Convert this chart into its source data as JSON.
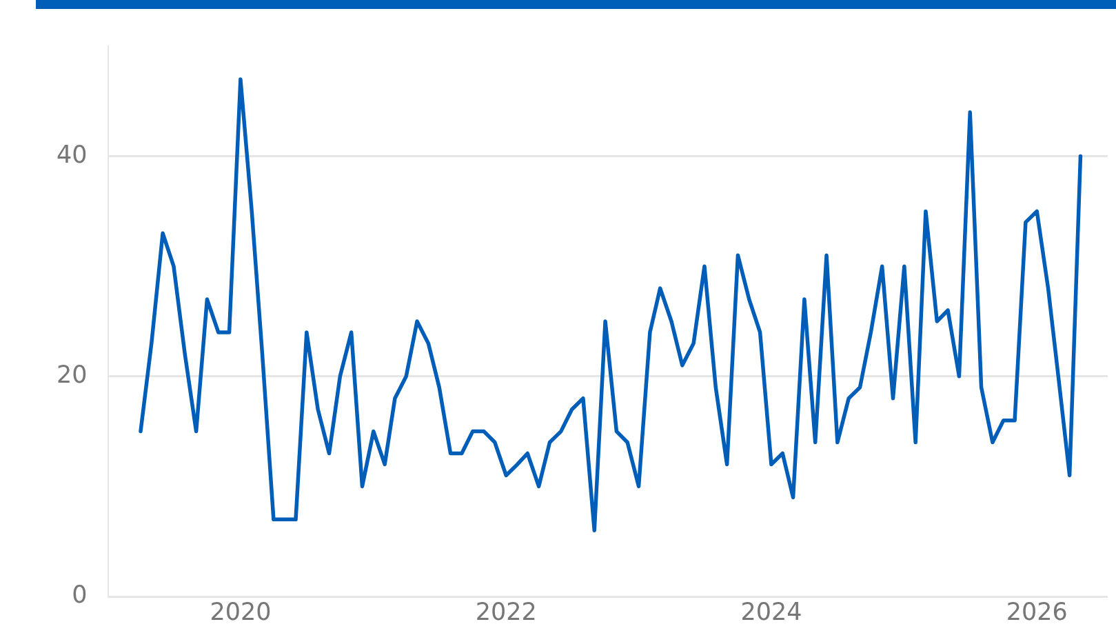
{
  "chart_data": {
    "type": "line",
    "x": [
      "2019-04",
      "2019-05",
      "2019-06",
      "2019-07",
      "2019-08",
      "2019-09",
      "2019-10",
      "2019-11",
      "2019-12",
      "2020-01",
      "2020-02",
      "2020-03",
      "2020-04",
      "2020-05",
      "2020-06",
      "2020-07",
      "2020-08",
      "2020-09",
      "2020-10",
      "2020-11",
      "2020-12",
      "2021-01",
      "2021-02",
      "2021-03",
      "2021-04",
      "2021-05",
      "2021-06",
      "2021-07",
      "2021-08",
      "2021-09",
      "2021-10",
      "2021-11",
      "2021-12",
      "2022-01",
      "2022-02",
      "2022-03",
      "2022-04",
      "2022-05",
      "2022-06",
      "2022-07",
      "2022-08",
      "2022-09",
      "2022-10",
      "2022-11",
      "2022-12",
      "2023-01",
      "2023-02",
      "2023-03",
      "2023-04",
      "2023-05",
      "2023-06",
      "2023-07",
      "2023-08",
      "2023-09",
      "2023-10",
      "2023-11",
      "2023-12",
      "2024-01",
      "2024-02",
      "2024-03",
      "2024-04",
      "2024-05",
      "2024-06",
      "2024-07",
      "2024-08",
      "2024-09",
      "2024-10",
      "2024-11",
      "2024-12",
      "2025-01",
      "2025-02",
      "2025-03",
      "2025-04",
      "2025-05",
      "2025-06",
      "2025-07",
      "2025-08",
      "2025-09",
      "2025-10",
      "2025-11",
      "2025-12",
      "2026-01",
      "2026-02",
      "2026-03",
      "2026-04",
      "2026-05"
    ],
    "series": [
      {
        "color": "#005eb8",
        "values": [
          15,
          23,
          33,
          30,
          22,
          15,
          27,
          24,
          24,
          47,
          35,
          22,
          7,
          7,
          7,
          24,
          17,
          13,
          20,
          24,
          10,
          15,
          12,
          18,
          20,
          25,
          23,
          19,
          13,
          13,
          15,
          15,
          14,
          11,
          12,
          13,
          10,
          14,
          15,
          17,
          18,
          6,
          25,
          15,
          14,
          10,
          24,
          28,
          25,
          21,
          23,
          30,
          19,
          12,
          31,
          27,
          24,
          12,
          13,
          9,
          27,
          14,
          31,
          14,
          18,
          19,
          24,
          30,
          18,
          30,
          14,
          35,
          25,
          26,
          20,
          44,
          19,
          14,
          16,
          16,
          34,
          35,
          28,
          20,
          11,
          40
        ]
      }
    ],
    "xlim": [
      "2019-01-01",
      "2026-07-15"
    ],
    "xticks": [
      "2020",
      "2022",
      "2024",
      "2026"
    ],
    "ylim": [
      0,
      50
    ],
    "yticks": [
      0,
      20,
      40
    ],
    "grid": "y",
    "legend": false,
    "marker": "none"
  }
}
